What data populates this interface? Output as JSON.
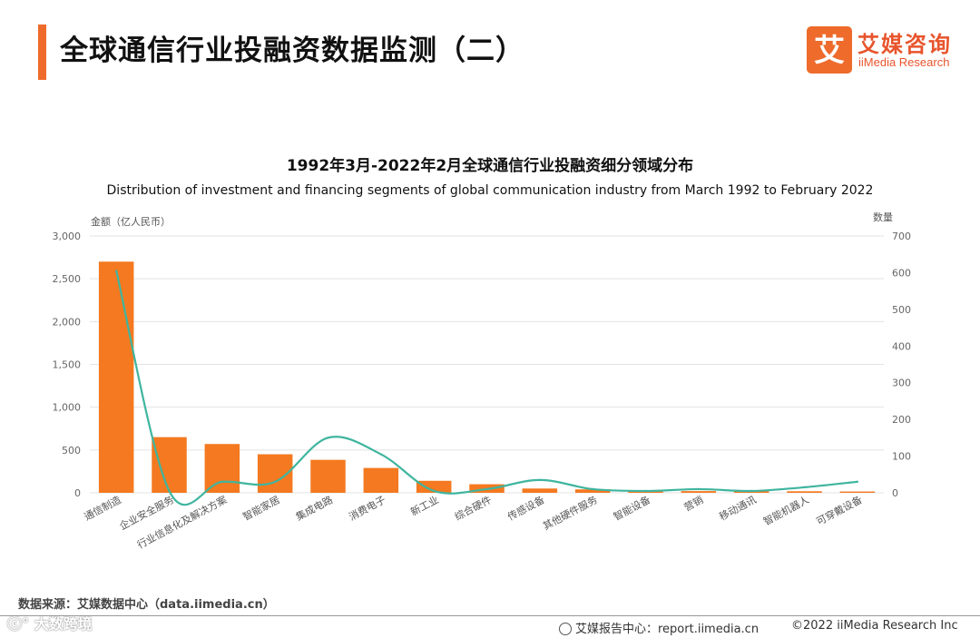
{
  "header": {
    "title": "全球通信行业投融资数据监测（二）",
    "logo_cn": "艾媒咨询",
    "logo_en": "iiMedia Research",
    "logo_mark": "艾"
  },
  "chart_data": {
    "type": "bar",
    "title": "1992年3月-2022年2月全球通信行业投融资细分领域分布",
    "subtitle": "Distribution of investment and financing segments of global communication industry from March 1992 to February 2022",
    "categories": [
      "通信制造",
      "企业安全服务",
      "行业信息化及解决方案",
      "智能家居",
      "集成电路",
      "消费电子",
      "新工业",
      "综合硬件",
      "传感设备",
      "其他硬件服务",
      "智能设备",
      "营销",
      "移动通讯",
      "智能机器人",
      "可穿戴设备"
    ],
    "ylabel": "金额（亿人民币）",
    "y2label": "数量",
    "ylim": [
      0,
      3000
    ],
    "y2lim": [
      0,
      700
    ],
    "yticks": [
      "0",
      "500",
      "1,000",
      "1,500",
      "2,000",
      "2,500",
      "3,000"
    ],
    "y2ticks": [
      "0",
      "100",
      "200",
      "300",
      "400",
      "500",
      "600",
      "700"
    ],
    "series": [
      {
        "name": "金额（亿人民币）",
        "type": "bar",
        "axis": "left",
        "color": "#f47920",
        "values": [
          2700,
          650,
          570,
          450,
          385,
          290,
          140,
          100,
          50,
          40,
          30,
          20,
          20,
          18,
          15
        ]
      },
      {
        "name": "数量",
        "type": "line",
        "axis": "right",
        "color": "#3fb59f",
        "values": [
          605,
          5,
          30,
          30,
          150,
          105,
          5,
          10,
          35,
          10,
          5,
          10,
          5,
          15,
          30
        ]
      }
    ],
    "grid": true
  },
  "footer": {
    "source": "数据来源：艾媒数据中心（data.iimedia.cn）",
    "watermark": "ⓒ° 大数跨境",
    "report": "艾媒报告中心：report.iimedia.cn",
    "copyright": "©2022  iiMedia Research  Inc"
  },
  "colors": {
    "accent": "#ee6b2c",
    "bar": "#f47920",
    "line": "#3fb59f",
    "grid": "#e3e3e3"
  }
}
